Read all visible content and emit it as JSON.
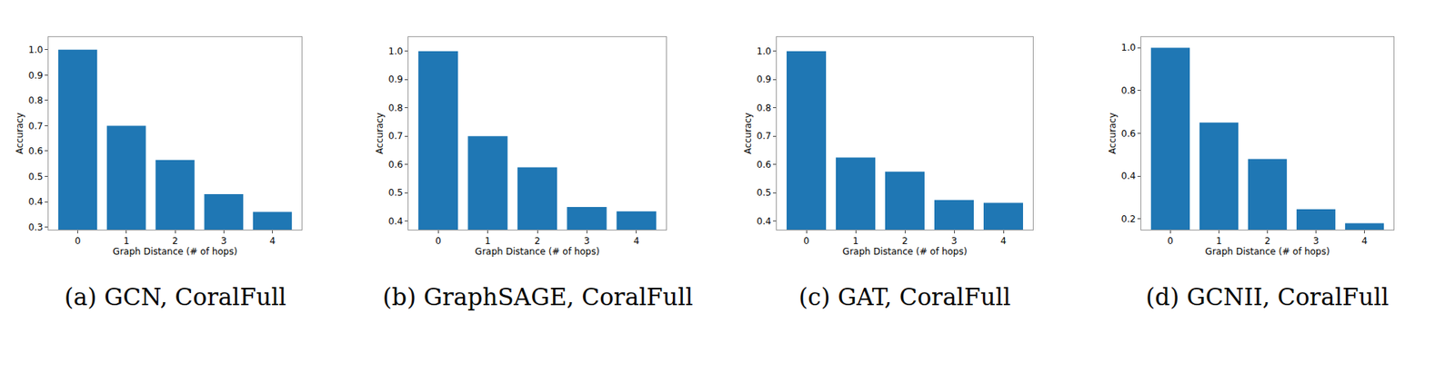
{
  "chart_data": [
    {
      "type": "bar",
      "title": "(a) GCN, CoralFull",
      "x_label": "Graph Distance (# of hops)",
      "y_label": "Accuracy",
      "categories": [
        "0",
        "1",
        "2",
        "3",
        "4"
      ],
      "values": [
        1.0,
        0.7,
        0.565,
        0.43,
        0.36
      ],
      "color": "#1f77b4",
      "ylim": [
        0.29,
        1.05
      ],
      "yticks": [
        0.3,
        0.4,
        0.5,
        0.6,
        0.7,
        0.8,
        0.9,
        {
          "value": 1,
          "label": "1.0"
        }
      ]
    },
    {
      "type": "bar",
      "title": "(b) GraphSAGE, CoralFull",
      "x_label": "Graph Distance (# of hops)",
      "y_label": "Accuracy",
      "categories": [
        "0",
        "1",
        "2",
        "3",
        "4"
      ],
      "values": [
        1.0,
        0.7,
        0.59,
        0.45,
        0.435
      ],
      "color": "#1f77b4",
      "ylim": [
        0.37,
        1.05
      ],
      "yticks": [
        0.4,
        0.5,
        0.6,
        0.7,
        0.8,
        0.9,
        {
          "value": 1,
          "label": "1.0"
        }
      ]
    },
    {
      "type": "bar",
      "title": "(c) GAT, CoralFull",
      "x_label": "Graph Distance (# of hops)",
      "y_label": "Accuracy",
      "categories": [
        "0",
        "1",
        "2",
        "3",
        "4"
      ],
      "values": [
        1.0,
        0.625,
        0.575,
        0.475,
        0.465
      ],
      "color": "#1f77b4",
      "ylim": [
        0.37,
        1.05
      ],
      "yticks": [
        0.4,
        0.5,
        0.6,
        0.7,
        0.8,
        0.9,
        {
          "value": 1,
          "label": "1.0"
        }
      ]
    },
    {
      "type": "bar",
      "title": "(d) GCNII, CoralFull",
      "x_label": "Graph Distance (# of hops)",
      "y_label": "Accuracy",
      "categories": [
        "0",
        "1",
        "2",
        "3",
        "4"
      ],
      "values": [
        1.0,
        0.65,
        0.48,
        0.245,
        0.18
      ],
      "color": "#1f77b4",
      "ylim": [
        0.15,
        1.05
      ],
      "yticks": [
        0.2,
        0.4,
        0.6,
        0.8,
        {
          "value": 1,
          "label": "1.0"
        }
      ]
    }
  ]
}
